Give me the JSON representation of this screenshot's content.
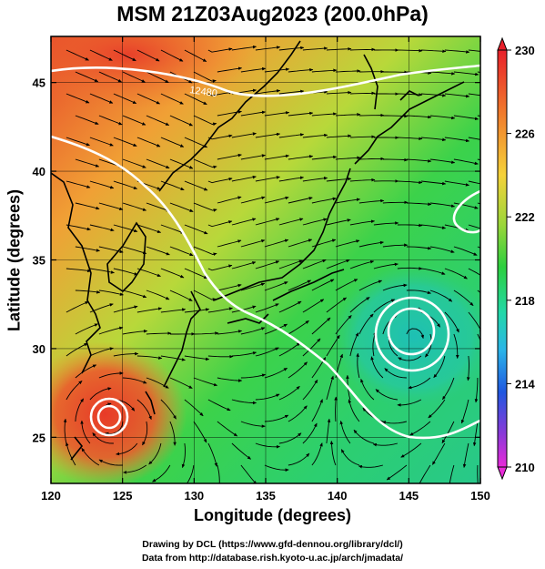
{
  "title": "MSM 21Z03Aug2023 (200.0hPa)",
  "map": {
    "xlabel": "Longitude (degrees)",
    "ylabel": "Latitude  (degrees)",
    "lon_range": [
      120,
      150
    ],
    "lat_range": [
      22.4,
      47.6
    ],
    "lon_ticks": [
      "120",
      "125",
      "130",
      "135",
      "140",
      "145",
      "150"
    ],
    "lat_ticks": [
      "25",
      "30",
      "35",
      "40",
      "45"
    ],
    "contour_label": "12480",
    "grid": true
  },
  "colorbar": {
    "min": 210,
    "max": 230,
    "tick_labels": [
      "230",
      "226",
      "222",
      "218",
      "214",
      "210"
    ]
  },
  "credits": {
    "line1": "Drawing by DCL (https://www.gfd-dennou.org/library/dcl/)",
    "line2": "Data from http://database.rish.kyoto-u.ac.jp/arch/jmadata/"
  },
  "colors": {
    "warm": "#e8402a",
    "mid": "#f0c23a",
    "green": "#40d050",
    "cool": "#22c4a0"
  }
}
